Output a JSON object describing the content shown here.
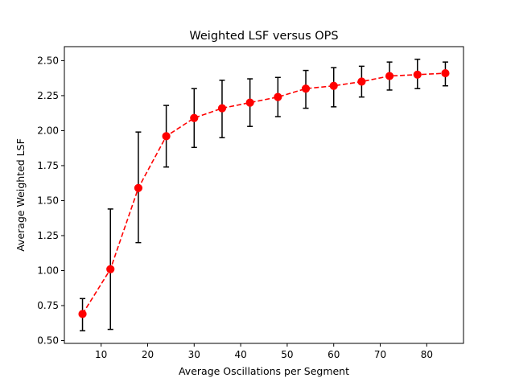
{
  "chart_data": {
    "type": "line",
    "title": "Weighted LSF versus OPS",
    "xlabel": "Average Oscillations per Segment",
    "ylabel": "Average Weighted LSF",
    "xlim": [
      2.1,
      87.9
    ],
    "ylim": [
      0.48,
      2.6
    ],
    "xticks": [
      10,
      20,
      30,
      40,
      50,
      60,
      70,
      80
    ],
    "yticks": [
      0.5,
      0.75,
      1.0,
      1.25,
      1.5,
      1.75,
      2.0,
      2.25,
      2.5
    ],
    "ytick_labels": [
      "0.50",
      "0.75",
      "1.00",
      "1.25",
      "1.50",
      "1.75",
      "2.00",
      "2.25",
      "2.50"
    ],
    "grid": false,
    "series": [
      {
        "name": "",
        "color": "#ff0000",
        "line_style": "dashed",
        "marker": "circle",
        "error_color": "#000000",
        "x": [
          6,
          12,
          18,
          24,
          30,
          36,
          42,
          48,
          54,
          60,
          66,
          72,
          78,
          84
        ],
        "y": [
          0.69,
          1.01,
          1.59,
          1.96,
          2.09,
          2.16,
          2.2,
          2.24,
          2.3,
          2.32,
          2.35,
          2.39,
          2.4,
          2.41
        ],
        "yerr_low": [
          0.57,
          0.58,
          1.2,
          1.74,
          1.88,
          1.95,
          2.03,
          2.1,
          2.16,
          2.17,
          2.24,
          2.29,
          2.3,
          2.32
        ],
        "yerr_high": [
          0.8,
          1.44,
          1.99,
          2.18,
          2.3,
          2.36,
          2.37,
          2.38,
          2.43,
          2.45,
          2.46,
          2.49,
          2.51,
          2.49
        ]
      }
    ]
  }
}
